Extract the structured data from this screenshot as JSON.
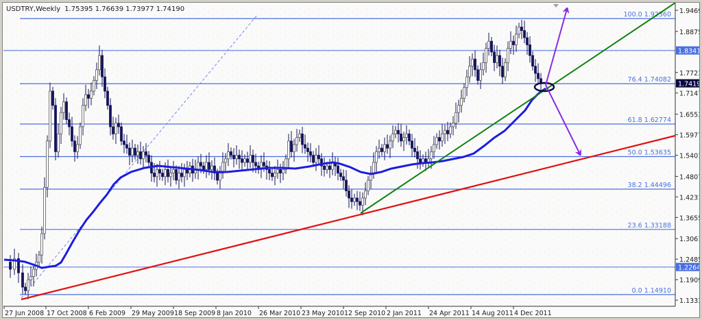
{
  "header": {
    "symbol": "USDTRY,Weekly",
    "ohlc": "1.75395 1.76639 1.73977 1.74190",
    "open": "1.75395",
    "high": "1.76639",
    "low": "1.73977",
    "close": "1.74190"
  },
  "y_axis": {
    "ticks": [
      "1.94690",
      "1.88750",
      "1.77230",
      "1.71470",
      "1.65530",
      "1.59770",
      "1.54010",
      "1.48070",
      "1.42310",
      "1.36550",
      "1.30610",
      "1.24850",
      "1.19090",
      "1.13330"
    ],
    "current_price_marker": "1.74190",
    "level_markers": [
      "1.83417",
      "1.22643"
    ]
  },
  "x_axis": {
    "ticks": [
      "27 Jun 2008",
      "17 Oct 2008",
      "6 Feb 2009",
      "29 May 2009",
      "18 Sep 2009",
      "8 Jan 2010",
      "26 Mar 2010",
      "23 May 2010",
      "12 Sep 2010",
      "2 Jan 2011",
      "24 Apr 2011",
      "14 Aug 2011",
      "4 Dec 2011"
    ]
  },
  "fibonacci": [
    {
      "label": "100.0 1.92360",
      "level": "100.0",
      "price": "1.92360"
    },
    {
      "label": "76.4 1.74082",
      "level": "76.4",
      "price": "1.74082"
    },
    {
      "label": "61.8 1.62774",
      "level": "61.8",
      "price": "1.62774"
    },
    {
      "label": "50.0 1.53635",
      "level": "50.0",
      "price": "1.53635"
    },
    {
      "label": "38.2 1.44496",
      "level": "38.2",
      "price": "1.44496"
    },
    {
      "label": "23.6 1.33188",
      "level": "23.6",
      "price": "1.33188"
    },
    {
      "label": "0.0 1.14910",
      "level": "0.0",
      "price": "1.14910"
    }
  ],
  "colors": {
    "background": "#fafafa",
    "fib_line": "#4a6fe0",
    "moving_average": "#1c1ce0",
    "support_trendline": "#e01010",
    "uptrend_line": "#108010",
    "arrows": "#8a2be2",
    "bull_candle": "#ffffff",
    "bear_candle": "#14145a",
    "price_marker_bg": "#0a0a40",
    "level_marker_bg": "#4a6fe0"
  },
  "chart_data": {
    "type": "candlestick",
    "title": "USDTRY,Weekly",
    "symbol": "USDTRY",
    "timeframe": "Weekly",
    "last_bar": {
      "open": 1.75395,
      "high": 1.76639,
      "low": 1.73977,
      "close": 1.7419
    },
    "ylim": [
      1.1333,
      1.9469
    ],
    "x_range": [
      "27 Jun 2008",
      "Jan 2012"
    ],
    "x_tick_labels": [
      "27 Jun 2008",
      "17 Oct 2008",
      "6 Feb 2009",
      "29 May 2009",
      "18 Sep 2009",
      "8 Jan 2010",
      "26 Mar 2010",
      "23 May 2010",
      "12 Sep 2010",
      "2 Jan 2011",
      "24 Apr 2011",
      "14 Aug 2011",
      "4 Dec 2011"
    ],
    "y_tick_labels": [
      1.9469,
      1.8875,
      1.7723,
      1.7147,
      1.6553,
      1.5977,
      1.5401,
      1.4807,
      1.4231,
      1.3655,
      1.3061,
      1.2485,
      1.1909,
      1.1333
    ],
    "fibonacci_retracement": {
      "levels": [
        {
          "pct": 100.0,
          "price": 1.9236
        },
        {
          "pct": 76.4,
          "price": 1.74082
        },
        {
          "pct": 61.8,
          "price": 1.62774
        },
        {
          "pct": 50.0,
          "price": 1.53635
        },
        {
          "pct": 38.2,
          "price": 1.44496
        },
        {
          "pct": 23.6,
          "price": 1.33188
        },
        {
          "pct": 0.0,
          "price": 1.1491
        }
      ]
    },
    "horizontal_levels": [
      1.83417,
      1.22643
    ],
    "approx_close_series": {
      "dates": [
        "Jun 2008",
        "Aug 2008",
        "Oct 2008",
        "Nov 2008",
        "Dec 2008",
        "Feb 2009",
        "Mar 2009",
        "Apr 2009",
        "May 2009",
        "Jul 2009",
        "Sep 2009",
        "Nov 2009",
        "Jan 2010",
        "Mar 2010",
        "Apr 2010",
        "May 2010",
        "Jul 2010",
        "Sep 2010",
        "Oct 2010",
        "Jan 2011",
        "Mar 2011",
        "Apr 2011",
        "Jun 2011",
        "Aug 2011",
        "Oct 2011",
        "Dec 2011",
        "Jan 2012"
      ],
      "close": [
        1.2,
        1.18,
        1.33,
        1.68,
        1.62,
        1.7,
        1.78,
        1.58,
        1.52,
        1.48,
        1.49,
        1.52,
        1.51,
        1.52,
        1.58,
        1.54,
        1.5,
        1.4,
        1.44,
        1.56,
        1.53,
        1.5,
        1.62,
        1.83,
        1.82,
        1.88,
        1.742
      ]
    },
    "moving_average": {
      "approx_values": [
        1.25,
        1.24,
        1.26,
        1.4,
        1.5,
        1.51,
        1.5,
        1.5,
        1.5,
        1.52,
        1.5,
        1.48,
        1.52,
        1.51,
        1.54,
        1.62,
        1.71
      ],
      "dates": [
        "Jun 2008",
        "Sep 2008",
        "Oct 2008",
        "Feb 2009",
        "May 2009",
        "Sep 2009",
        "Jan 2010",
        "Mar 2010",
        "May 2010",
        "Jul 2010",
        "Sep 2010",
        "Oct 2010",
        "Jan 2011",
        "Apr 2011",
        "Jun 2011",
        "Oct 2011",
        "Jan 2012"
      ]
    },
    "trendlines": [
      {
        "name": "support (red)",
        "from": {
          "date": "27 Jun 2008",
          "price": 1.149
        },
        "to": {
          "date": "end",
          "price": 1.6
        }
      },
      {
        "name": "uptrend (green)",
        "from": {
          "date": "12 Sep 2010",
          "price": 1.39
        },
        "to": {
          "date": "end",
          "price": 1.95
        }
      },
      {
        "name": "dashed fib diagonal (blue)",
        "from": {
          "date": "27 Jun 2008",
          "price": 1.149
        },
        "to": {
          "date": "18 Sep 2009",
          "price": 1.92
        }
      }
    ],
    "annotations": [
      {
        "type": "ellipse",
        "at": {
          "date": "Jan 2012",
          "price": 1.74
        }
      },
      {
        "type": "arrow",
        "direction": "up",
        "target_price": 1.95
      },
      {
        "type": "arrow",
        "direction": "down",
        "target_price": 1.536
      }
    ]
  }
}
